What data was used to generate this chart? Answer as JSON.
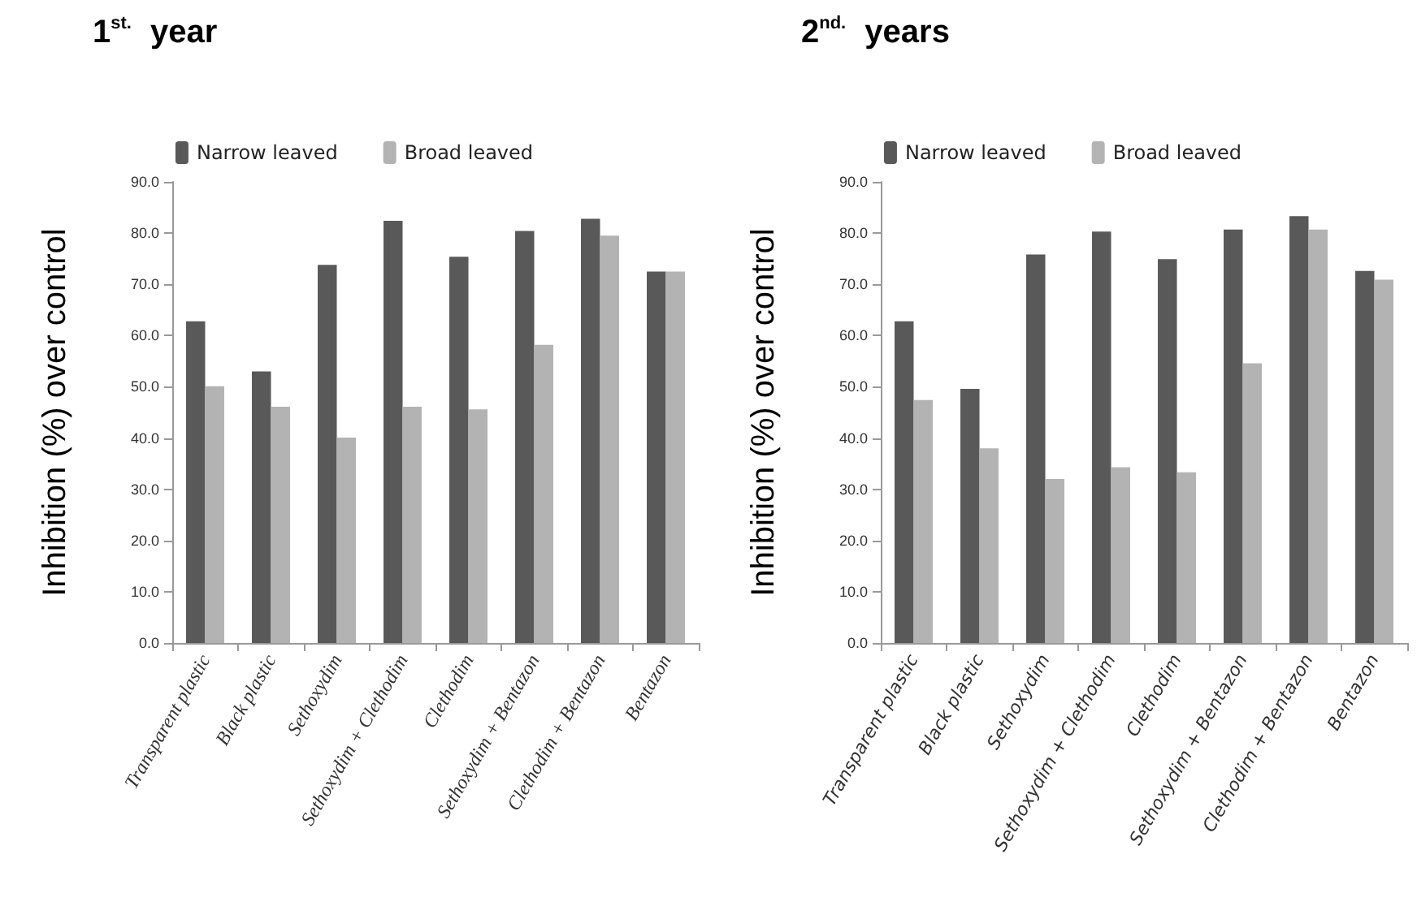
{
  "chart_data": [
    {
      "type": "bar",
      "title": "1$^{st.}$ year",
      "ylabel": "Inhibition (%) over control",
      "categories": [
        "Transparent plastic",
        "Black plastic",
        "Sethoxydim",
        "Sethoxydim + Clethodim",
        "Clethodim",
        "Sethoxydim + Bentazon",
        "Clethodim + Bentazon",
        "Bentazon"
      ],
      "series": [
        {
          "name": "Narrow leaved",
          "color": "#595959",
          "values": [
            62.8,
            53.0,
            73.8,
            82.4,
            75.4,
            80.4,
            82.8,
            72.5
          ]
        },
        {
          "name": "Broad leaved",
          "color": "#b3b3b3",
          "values": [
            50.1,
            46.1,
            40.1,
            46.1,
            45.6,
            58.2,
            79.5,
            72.5
          ]
        }
      ],
      "ylim": [
        0,
        90
      ],
      "yticks": [
        {
          "value": 0,
          "label": "0.0"
        },
        {
          "value": 10,
          "label": "10.0"
        },
        {
          "value": 20,
          "label": "20.0"
        },
        {
          "value": 30,
          "label": "30.0"
        },
        {
          "value": 40,
          "label": "40.0"
        },
        {
          "value": 50,
          "label": "50.0"
        },
        {
          "value": 60,
          "label": "60.0"
        },
        {
          "value": 70,
          "label": "70.0"
        },
        {
          "value": 80,
          "label": "80.0"
        },
        {
          "value": 90,
          "label": "90.0"
        }
      ],
      "grid": false,
      "legend": "top"
    },
    {
      "type": "bar",
      "title": "2$^{nd.}$ years",
      "ylabel": "Inhibition (%) over control",
      "categories": [
        "Transparent plastic",
        "Black plastic",
        "Sethoxydim",
        "Sethoxydim + Clethodim",
        "Clethodim",
        "Sethoxydim + Bentazon",
        "Clethodim + Bentazon",
        "Bentazon"
      ],
      "series": [
        {
          "name": "Narrow leaved",
          "color": "#595959",
          "values": [
            62.8,
            49.6,
            75.8,
            80.3,
            74.9,
            80.7,
            83.3,
            72.6
          ]
        },
        {
          "name": "Broad leaved",
          "color": "#b3b3b3",
          "values": [
            47.4,
            38.0,
            32.0,
            34.3,
            33.3,
            54.6,
            80.7,
            70.9
          ]
        }
      ],
      "ylim": [
        0,
        90
      ],
      "yticks": [
        {
          "value": 0,
          "label": "0.0"
        },
        {
          "value": 10,
          "label": "10.0"
        },
        {
          "value": 20,
          "label": "20.0"
        },
        {
          "value": 30,
          "label": "30.0"
        },
        {
          "value": 40,
          "label": "40.0"
        },
        {
          "value": 50,
          "label": "50.0"
        },
        {
          "value": 60,
          "label": "60.0"
        },
        {
          "value": 70,
          "label": "70.0"
        },
        {
          "value": 80,
          "label": "80.0"
        },
        {
          "value": 90,
          "label": "90.0"
        }
      ],
      "grid": false,
      "legend": "top"
    }
  ]
}
